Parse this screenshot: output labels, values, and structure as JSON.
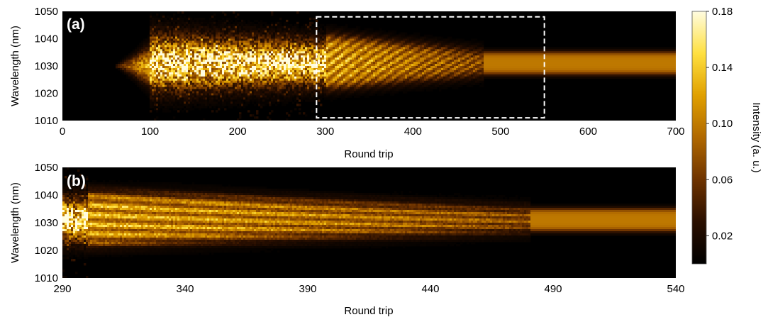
{
  "chart_data": [
    {
      "type": "heatmap",
      "panel_label": "(a)",
      "xlabel": "Round trip",
      "ylabel": "Wavelength (nm)",
      "xlim": [
        0,
        700
      ],
      "ylim": [
        1010,
        1050
      ],
      "xticks": [
        0,
        100,
        200,
        300,
        400,
        500,
        600,
        700
      ],
      "yticks": [
        1010,
        1020,
        1030,
        1040,
        1050
      ],
      "features": {
        "onset_round_trip": 100,
        "pre_onset_line_nm": 1030,
        "chaotic_region": [
          100,
          300
        ],
        "interference_region": [
          300,
          480
        ],
        "stable_region": [
          480,
          700
        ],
        "stable_band_nm": [
          1027,
          1035
        ]
      },
      "highlight_box": {
        "x_range": [
          290,
          550
        ],
        "y_range": [
          1011,
          1048
        ],
        "style": "dashed",
        "color": "#ffffff"
      }
    },
    {
      "type": "heatmap",
      "panel_label": "(b)",
      "xlabel": "Round trip",
      "ylabel": "Wavelength (nm)",
      "xlim": [
        290,
        540
      ],
      "ylim": [
        1010,
        1050
      ],
      "xticks": [
        290,
        340,
        390,
        440,
        490,
        540
      ],
      "yticks": [
        1010,
        1020,
        1030,
        1040,
        1050
      ],
      "features": {
        "stable_band_nm": [
          1027,
          1035
        ]
      }
    }
  ],
  "colorbar": {
    "label": "Intensity (a. u.)",
    "range": [
      0,
      0.18
    ],
    "ticks": [
      0.02,
      0.06,
      0.1,
      0.14,
      0.18
    ],
    "colormap": [
      "#000000",
      "#2a0f00",
      "#6e3300",
      "#b06800",
      "#e0a000",
      "#ffe040",
      "#fffce0"
    ]
  }
}
